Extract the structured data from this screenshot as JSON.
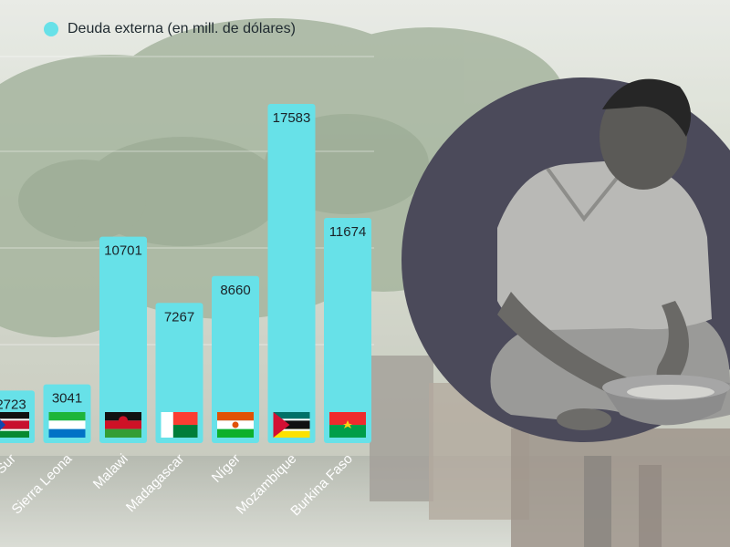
{
  "colors": {
    "bar": "#67e1e8",
    "circle_bg": "#4b4a5a",
    "label_text": "#1b2328",
    "category_text": "#ffffff"
  },
  "chart_data": {
    "type": "bar",
    "categories": [
      "Sudán del Sur",
      "Sierra Leona",
      "Malawi",
      "Madagascar",
      "Níger",
      "Mozambique",
      "Burkina Faso"
    ],
    "series": [
      {
        "name": "Deuda externa (en mill. de dólares)",
        "values": [
          2723,
          3041,
          10701,
          7267,
          8660,
          17583,
          11674
        ]
      }
    ],
    "flags": [
      "flag-south-sudan-icon",
      "flag-sierra-leone-icon",
      "flag-malawi-icon",
      "flag-madagascar-icon",
      "flag-niger-icon",
      "flag-mozambique-icon",
      "flag-burkina-faso-icon"
    ],
    "ylim": [
      0,
      20000
    ],
    "grid": true,
    "legend_position": "top-left"
  }
}
